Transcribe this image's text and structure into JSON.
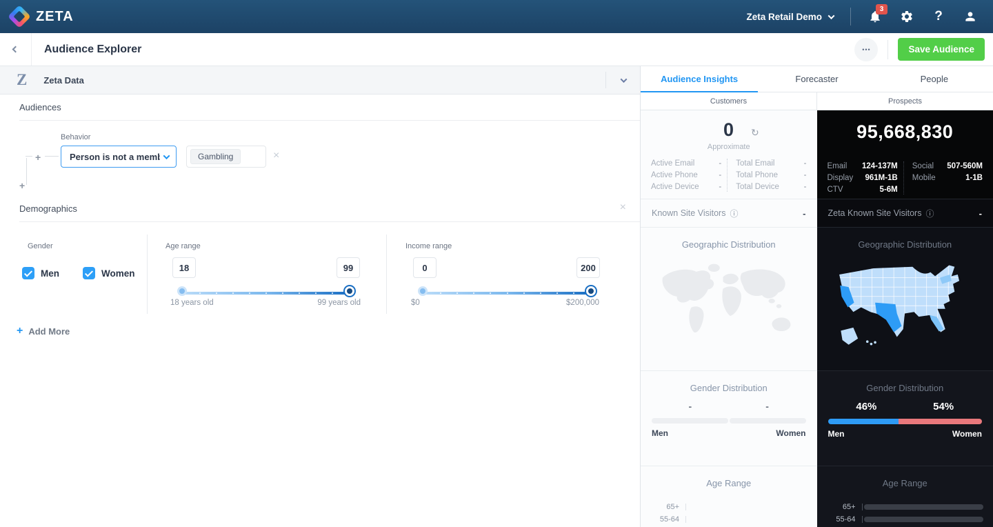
{
  "colors": {
    "navbar_blue": "#1C4265",
    "accent_blue": "#2196F3",
    "save_green": "#52CE48",
    "badge_red": "#E1544C",
    "prospect_men_bar": "#2E9BF5",
    "prospect_women_bar": "#E9787C",
    "customer_placeholder_bar": "#EDEFF2",
    "age_bar_blue": "#2E9BF5"
  },
  "icons": {
    "refresh": "↻",
    "info": "ⓘ",
    "close": "×",
    "plus": "+",
    "ellipsis": "•••"
  },
  "navbar": {
    "brand": "ZETA",
    "account_selector": "Zeta Retail Demo",
    "notification_count": "3"
  },
  "header": {
    "title": "Audience Explorer",
    "save_button": "Save Audience"
  },
  "builder": {
    "panel_title": "Zeta Data",
    "logo_glyph": "Z",
    "audiences": {
      "title": "Audiences",
      "behavior_label": "Behavior",
      "behavior_value": "Person is not a membe...",
      "tag": "Gambling"
    },
    "demographics": {
      "title": "Demographics",
      "gender_label": "Gender",
      "men_label": "Men",
      "women_label": "Women",
      "age_label": "Age range",
      "age_min": "18",
      "age_max": "99",
      "age_min_caption": "18 years old",
      "age_max_caption": "99 years old",
      "income_label": "Income range",
      "income_min": "0",
      "income_max": "200",
      "income_min_caption": "$0",
      "income_max_caption": "$200,000"
    },
    "add_more_label": "Add More"
  },
  "insights": {
    "tabs": [
      {
        "label": "Audience Insights"
      },
      {
        "label": "Forecaster"
      },
      {
        "label": "People"
      }
    ],
    "customers": {
      "column_label": "Customers",
      "count": "0",
      "count_caption": "Approximate",
      "stats_left": [
        {
          "label": "Active Email",
          "value": "-"
        },
        {
          "label": "Active Phone",
          "value": "-"
        },
        {
          "label": "Active Device",
          "value": "-"
        }
      ],
      "stats_right": [
        {
          "label": "Total Email",
          "value": "-"
        },
        {
          "label": "Total Phone",
          "value": "-"
        },
        {
          "label": "Total Device",
          "value": "-"
        }
      ],
      "known_visitors_label": "Known Site Visitors",
      "known_visitors_value": "-",
      "geo_title": "Geographic Distribution",
      "gender": {
        "title": "Gender Distribution",
        "men_value": "-",
        "women_value": "-",
        "men_label": "Men",
        "women_label": "Women",
        "men_pct": 50,
        "women_pct": 50
      },
      "age": {
        "title": "Age Range",
        "rows": [
          {
            "label": "65+",
            "pct": 100
          },
          {
            "label": "55-64",
            "pct": 100
          }
        ]
      }
    },
    "prospects": {
      "column_label": "Prospects",
      "count": "95,668,830",
      "stats_left": [
        {
          "label": "Email",
          "value": "124-137M"
        },
        {
          "label": "Display",
          "value": "961M-1B"
        },
        {
          "label": "CTV",
          "value": "5-6M"
        }
      ],
      "stats_right": [
        {
          "label": "Social",
          "value": "507-560M"
        },
        {
          "label": "Mobile",
          "value": "1-1B"
        }
      ],
      "known_visitors_label": "Zeta Known Site Visitors",
      "known_visitors_value": "-",
      "geo_title": "Geographic Distribution",
      "gender": {
        "title": "Gender Distribution",
        "men_value": "46%",
        "women_value": "54%",
        "men_label": "Men",
        "women_label": "Women",
        "men_pct": 46,
        "women_pct": 54
      },
      "age": {
        "title": "Age Range",
        "rows": [
          {
            "label": "65+",
            "pct": 100
          },
          {
            "label": "55-64",
            "pct": 88
          }
        ]
      }
    }
  }
}
